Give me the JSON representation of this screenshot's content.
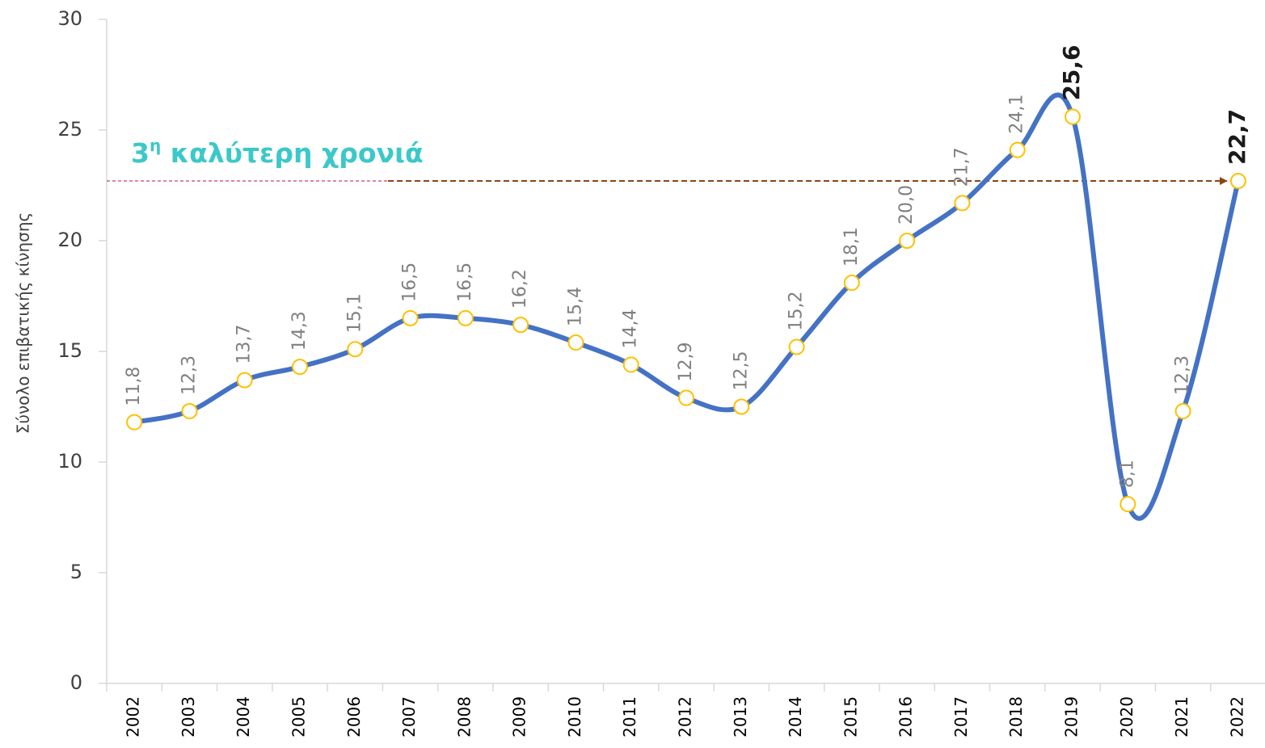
{
  "chart_data": {
    "type": "line",
    "y_axis_label": "Σύνολο επιβατικής κίνησης",
    "annotation": {
      "main": "3",
      "sup": "η",
      "rest": " καλύτερη χρονιά"
    },
    "categories": [
      "2002",
      "2003",
      "2004",
      "2005",
      "2006",
      "2007",
      "2008",
      "2009",
      "2010",
      "2011",
      "2012",
      "2013",
      "2014",
      "2015",
      "2016",
      "2017",
      "2018",
      "2019",
      "2020",
      "2021",
      "2022"
    ],
    "series": [
      {
        "color": "#4472c4",
        "marker_color": "#ffc000",
        "values": [
          11.8,
          12.3,
          13.7,
          14.3,
          15.1,
          16.5,
          16.5,
          16.2,
          15.4,
          14.4,
          12.9,
          12.5,
          15.2,
          18.1,
          20.0,
          21.7,
          24.1,
          25.6,
          8.1,
          12.3,
          22.7
        ],
        "value_labels": [
          "11,8",
          "12,3",
          "13,7",
          "14,3",
          "15,1",
          "16,5",
          "16,5",
          "16,2",
          "15,4",
          "14,4",
          "12,9",
          "12,5",
          "15,2",
          "18,1",
          "20,0",
          "21,7",
          "24,1",
          "25,6",
          "8,1",
          "12,3",
          "22,7"
        ],
        "bold_labels": [
          17,
          20
        ]
      }
    ],
    "reference_line": {
      "series_point": 20,
      "color": "#8b4513"
    },
    "ylim": [
      0,
      30
    ],
    "yticks": [
      0,
      5,
      10,
      15,
      20,
      25,
      30
    ],
    "smooth": true
  }
}
